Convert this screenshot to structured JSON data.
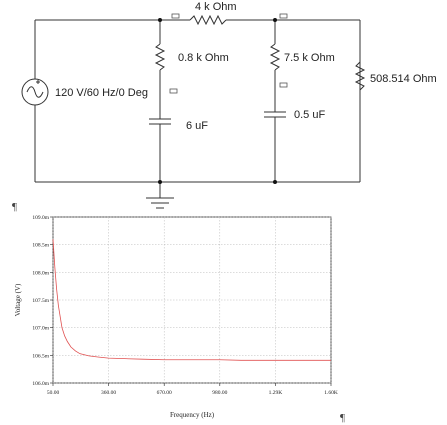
{
  "circuit": {
    "labels": {
      "r_top": "4 k Ohm",
      "r_mid_left": "0.8 k Ohm",
      "r_mid_right": "7.5 k Ohm",
      "r_far_right": "508.514  Ohm",
      "source": "120 V/60 Hz/0 Deg",
      "cap_left": "6 uF",
      "cap_right": "0.5 uF"
    }
  },
  "pilcrows": [
    "¶",
    "¶"
  ],
  "chart_data": {
    "type": "line",
    "title": "",
    "xlabel": "Frequency (Hz)",
    "ylabel": "Voltage (V)",
    "xlim": [
      50,
      1600
    ],
    "ylim": [
      106.0,
      109.0
    ],
    "xticks": [
      50,
      360,
      670,
      980,
      1290,
      1600
    ],
    "xtick_labels": [
      "50.00",
      "360.00",
      "670.00",
      "980.00",
      "1.29K",
      "1.60K"
    ],
    "yticks": [
      106.0,
      106.5,
      107.0,
      107.5,
      108.0,
      108.5,
      109.0
    ],
    "ytick_labels": [
      "106.0m",
      "106.5m",
      "107.0m",
      "107.5m",
      "108.0m",
      "108.5m",
      "109.0m"
    ],
    "grid": true,
    "line_color": "#e05050",
    "series": [
      {
        "x": [
          50,
          55,
          60,
          65,
          70,
          80,
          90,
          100,
          115,
          130,
          150,
          175,
          200,
          250,
          300,
          360,
          450,
          550,
          670,
          800,
          980,
          1100,
          1290,
          1450,
          1600
        ],
        "y": [
          108.6,
          108.35,
          108.1,
          107.9,
          107.7,
          107.4,
          107.2,
          107.0,
          106.85,
          106.75,
          106.65,
          106.58,
          106.53,
          106.49,
          106.47,
          106.45,
          106.44,
          106.43,
          106.42,
          106.42,
          106.42,
          106.41,
          106.41,
          106.41,
          106.41
        ]
      }
    ]
  }
}
